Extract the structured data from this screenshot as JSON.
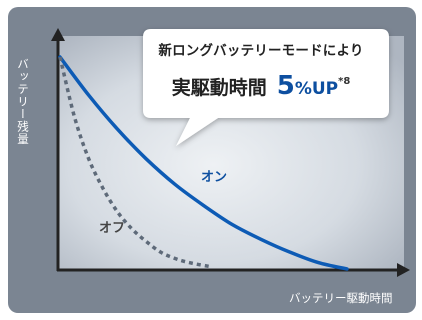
{
  "callout": {
    "line1": "新ロングバッテリーモードにより",
    "line2_prefix": "実駆動時間",
    "value": "5",
    "unit": "%UP",
    "footnote": "*8"
  },
  "colors": {
    "on_series": "#0d5bb5",
    "off_series": "#5e6a79",
    "panel_outer": "#7b8592",
    "panel_inner": "#e4e8ed"
  },
  "chart_data": {
    "type": "line",
    "title": "",
    "xlabel": "バッテリー駆動時間",
    "ylabel": "バッテリー残量",
    "grid": false,
    "series": [
      {
        "name": "オン",
        "style": "solid",
        "points": [
          [
            0,
            100
          ],
          [
            0.1,
            82
          ],
          [
            0.2,
            66
          ],
          [
            0.3,
            52
          ],
          [
            0.4,
            40
          ],
          [
            0.5,
            30
          ],
          [
            0.6,
            21
          ],
          [
            0.7,
            14
          ],
          [
            0.8,
            8
          ],
          [
            0.9,
            3
          ],
          [
            1.0,
            0
          ]
        ]
      },
      {
        "name": "オフ",
        "style": "dotted",
        "points": [
          [
            0,
            100
          ],
          [
            0.05,
            72
          ],
          [
            0.1,
            52
          ],
          [
            0.15,
            38
          ],
          [
            0.2,
            27
          ],
          [
            0.25,
            19
          ],
          [
            0.3,
            13
          ],
          [
            0.35,
            8
          ],
          [
            0.4,
            5
          ],
          [
            0.45,
            3
          ],
          [
            0.53,
            1
          ]
        ]
      }
    ]
  }
}
